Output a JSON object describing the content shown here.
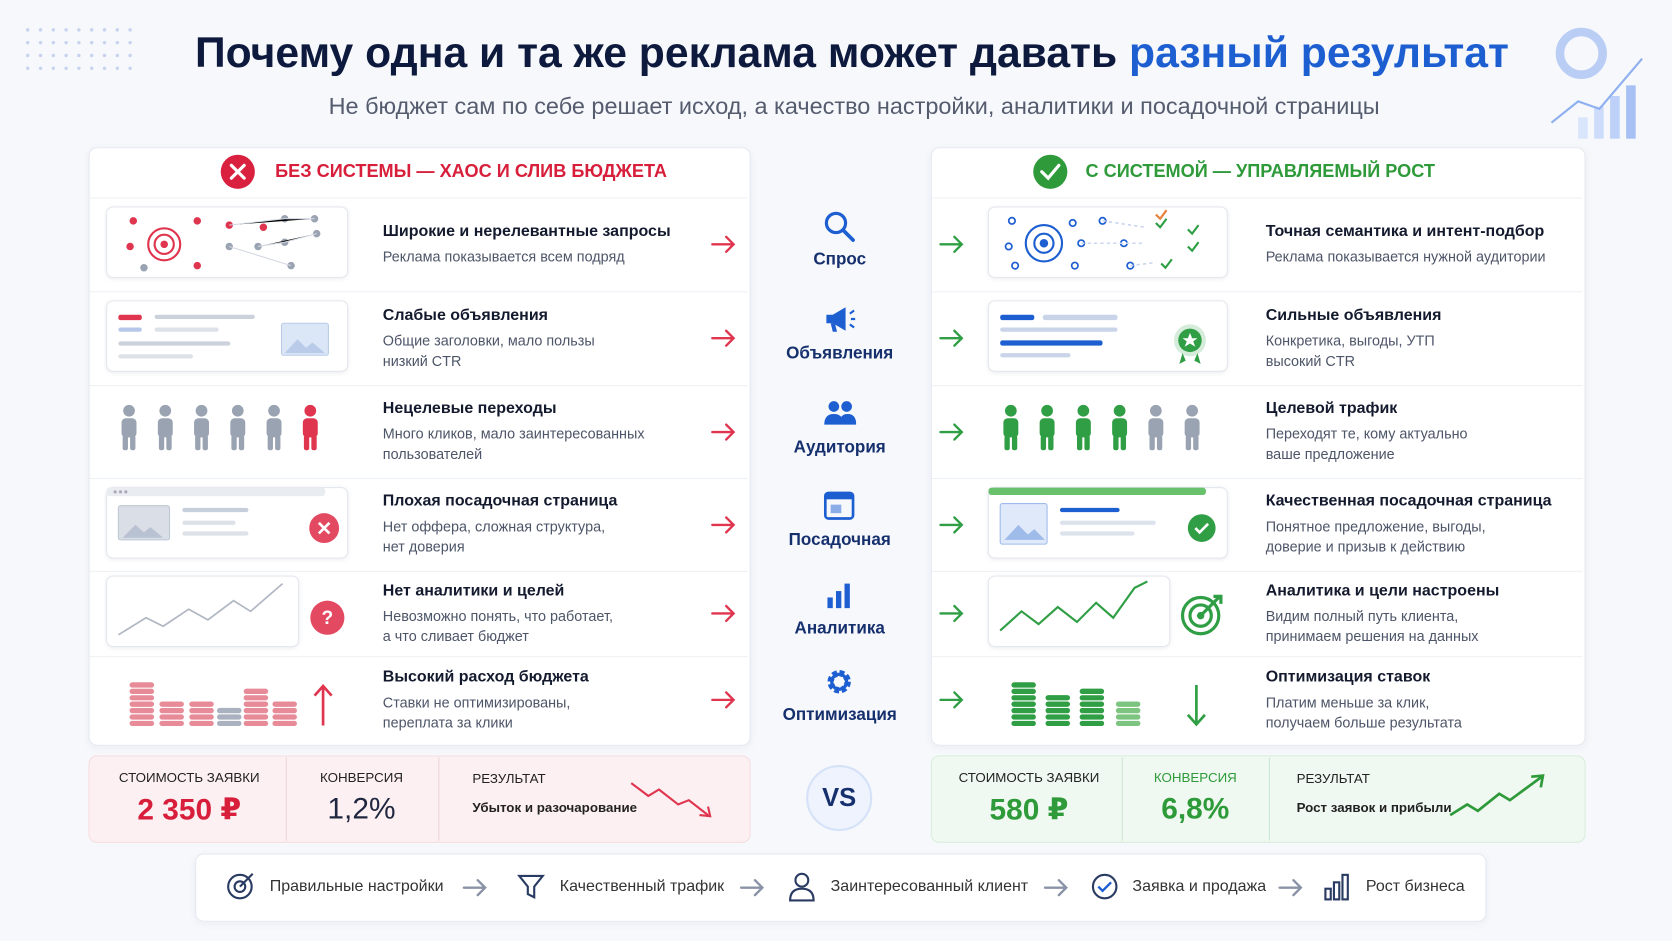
{
  "header": {
    "title": "Почему одна и та же реклама может давать",
    "title_accent": "разный результат",
    "subtitle": "Не бюджет сам по себе решает исход, а качество настройки, аналитики и посадочной страницы"
  },
  "bad_heading": "БЕЗ СИСТЕМЫ — ХАОС И СЛИВ БЮДЖЕТА",
  "good_heading": "С СИСТЕМОЙ — УПРАВЛЯЕМЫЙ РОСТ",
  "rows": [
    {
      "category": "Спрос",
      "bad": {
        "title": "Широкие и нерелевантные запросы",
        "text": [
          "Реклама показывается всем подряд"
        ]
      },
      "good": {
        "title": "Точная семантика и интент-подбор",
        "text": [
          "Реклама показывается нужной аудитории"
        ]
      }
    },
    {
      "category": "Объявления",
      "bad": {
        "title": "Слабые объявления",
        "text": [
          "Общие заголовки, мало пользы",
          "низкий CTR"
        ]
      },
      "good": {
        "title": "Сильные объявления",
        "text": [
          "Конкретика, выгоды, УТП",
          "высокий CTR"
        ]
      }
    },
    {
      "category": "Аудитория",
      "bad": {
        "title": "Нецелевые переходы",
        "text": [
          "Много кликов, мало заинтересованных",
          "пользователей"
        ]
      },
      "good": {
        "title": "Целевой трафик",
        "text": [
          "Переходят те, кому актуально",
          "ваше предложение"
        ]
      }
    },
    {
      "category": "Посадочная",
      "bad": {
        "title": "Плохая посадочная страница",
        "text": [
          "Нет оффера, сложная структура,",
          "нет доверия"
        ]
      },
      "good": {
        "title": "Качественная посадочная страница",
        "text": [
          "Понятное предложение, выгоды,",
          "доверие и призыв к действию"
        ]
      }
    },
    {
      "category": "Аналитика",
      "bad": {
        "title": "Нет аналитики и целей",
        "text": [
          "Невозможно понять, что работает,",
          "а что сливает бюджет"
        ]
      },
      "good": {
        "title": "Аналитика и цели настроены",
        "text": [
          "Видим полный путь клиента,",
          "принимаем решения на данных"
        ]
      }
    },
    {
      "category": "Оптимизация",
      "bad": {
        "title": "Высокий расход бюджета",
        "text": [
          "Ставки не оптимизированы,",
          "переплата за клики"
        ]
      },
      "good": {
        "title": "Оптимизация ставок",
        "text": [
          "Платим меньше за клик,",
          "получаем больше результата"
        ]
      }
    }
  ],
  "summary": {
    "bad": {
      "cost_label": "СТОИМОСТЬ ЗАЯВКИ",
      "cost": "2 350 ₽",
      "conv_label": "КОНВЕРСИЯ",
      "conv": "1,2%",
      "result_label": "РЕЗУЛЬТАТ",
      "result": "Убыток и разочарование"
    },
    "vs": "VS",
    "good": {
      "cost_label": "СТОИМОСТЬ ЗАЯВКИ",
      "cost": "580 ₽",
      "conv_label": "КОНВЕРСИЯ",
      "conv": "6,8%",
      "result_label": "РЕЗУЛЬТАТ",
      "result": "Рост заявок и прибыли"
    }
  },
  "flow": [
    "Правильные настройки",
    "Качественный трафик",
    "Заинтересованный клиент",
    "Заявка и продажа",
    "Рост бизнеса"
  ]
}
